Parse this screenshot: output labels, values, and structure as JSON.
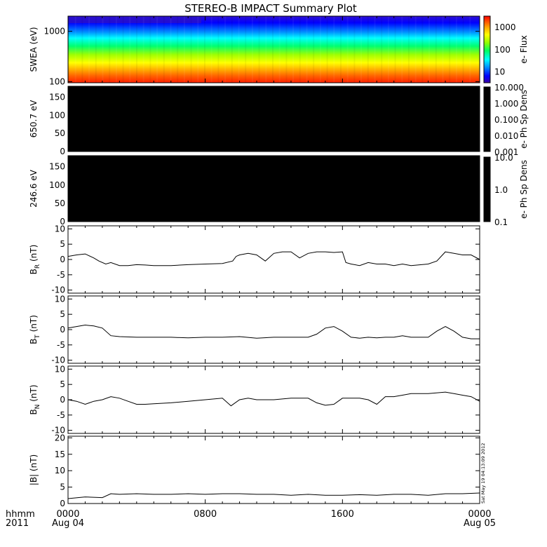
{
  "title": "STEREO-B IMPACT Summary Plot",
  "stamp": "Sat May 19 04:13:09 2012",
  "time_axis": {
    "row1_label": "hhmm",
    "row2_label": "2011",
    "ticks": [
      {
        "t": 0,
        "top": "0000",
        "bottom": "Aug 04"
      },
      {
        "t": 8,
        "top": "0800",
        "bottom": ""
      },
      {
        "t": 16,
        "top": "1600",
        "bottom": ""
      },
      {
        "t": 24,
        "top": "0000",
        "bottom": "Aug 05"
      }
    ],
    "range": [
      0,
      24
    ],
    "minor_step_hours": 1
  },
  "colors": {
    "colorbar": [
      "#3a00a8",
      "#0000ff",
      "#00a0ff",
      "#00ffff",
      "#00ff60",
      "#90ff00",
      "#ffff00",
      "#ffb000",
      "#ff5000",
      "#ff0000"
    ],
    "black_panel": "#000000"
  },
  "chart_data": [
    {
      "type": "heatmap",
      "ylabel": "SWEA (eV)",
      "ylog": true,
      "ylim": [
        95,
        2000
      ],
      "ytick_labels": [
        "100",
        "1000"
      ],
      "colorbar": {
        "label": "e- Flux",
        "log": true,
        "range": [
          3,
          3000
        ],
        "tick_labels": [
          "10",
          "100",
          "1000"
        ]
      },
      "description_bands": [
        {
          "energy_ev": 1800,
          "color": "#1010ff"
        },
        {
          "energy_ev": 1000,
          "color": "#00c0ff"
        },
        {
          "energy_ev": 600,
          "color": "#00ff70"
        },
        {
          "energy_ev": 300,
          "color": "#c0ff00"
        },
        {
          "energy_ev": 150,
          "color": "#ff9000"
        },
        {
          "energy_ev": 100,
          "color": "#ff2000"
        }
      ]
    },
    {
      "type": "heatmap",
      "ylabel": "650.7 eV",
      "ylim": [
        0,
        180
      ],
      "ytick_labels": [
        "0",
        "50",
        "100",
        "150"
      ],
      "colorbar": {
        "label": "e- Ph Sp Dens",
        "log": true,
        "range": [
          0.001,
          10
        ],
        "tick_labels": [
          "0.001",
          "0.010",
          "0.100",
          "1.000",
          "10.000"
        ]
      }
    },
    {
      "type": "heatmap",
      "ylabel": "246.6 eV",
      "ylim": [
        0,
        180
      ],
      "ytick_labels": [
        "0",
        "50",
        "100",
        "150"
      ],
      "colorbar": {
        "label": "e- Ph Sp Dens",
        "log": true,
        "range": [
          0.1,
          10
        ],
        "tick_labels": [
          "0.1",
          "1.0",
          "10.0"
        ]
      }
    },
    {
      "type": "line",
      "ylabel": "B",
      "ylabel_sub": "R",
      "ylabel_unit": " (nT)",
      "ylim": [
        -11,
        11
      ],
      "ytick_labels": [
        "-10",
        "-5",
        "0",
        "5",
        "10"
      ],
      "x": [
        0,
        0.5,
        1,
        1.5,
        1.8,
        2.2,
        2.5,
        3,
        3.5,
        4,
        4.5,
        5,
        6,
        7,
        8,
        9,
        9.6,
        9.8,
        10,
        10.5,
        11,
        11.5,
        12,
        12.5,
        13,
        13.5,
        14,
        14.5,
        15,
        15.5,
        16,
        16.2,
        16.5,
        17,
        17.5,
        18,
        18.5,
        19,
        19.5,
        20,
        21,
        21.5,
        22,
        22.5,
        23,
        23.5,
        24
      ],
      "y": [
        1,
        1.5,
        1.8,
        0.5,
        -0.5,
        -1.5,
        -1,
        -2,
        -2,
        -1.7,
        -1.8,
        -2,
        -2,
        -1.7,
        -1.5,
        -1.3,
        -0.5,
        1,
        1.5,
        2,
        1.5,
        -0.5,
        2,
        2.5,
        2.5,
        0.5,
        2,
        2.5,
        2.5,
        2.3,
        2.5,
        -1,
        -1.5,
        -2,
        -1,
        -1.5,
        -1.5,
        -2,
        -1.5,
        -2,
        -1.5,
        -0.5,
        2.5,
        2,
        1.5,
        1.5,
        0
      ]
    },
    {
      "type": "line",
      "ylabel": "B",
      "ylabel_sub": "T",
      "ylabel_unit": " (nT)",
      "ylim": [
        -11,
        11
      ],
      "ytick_labels": [
        "-10",
        "-5",
        "0",
        "5",
        "10"
      ],
      "x": [
        0,
        0.5,
        1,
        1.5,
        2,
        2.5,
        3,
        4,
        5,
        6,
        7,
        8,
        9,
        10,
        11,
        12,
        13,
        14,
        14.5,
        15,
        15.5,
        16,
        16.5,
        17,
        17.5,
        18,
        18.5,
        19,
        19.5,
        20,
        20.5,
        21,
        21.5,
        22,
        22.5,
        23,
        23.5,
        24
      ],
      "y": [
        0.5,
        1,
        1.5,
        1.2,
        0.5,
        -2,
        -2.3,
        -2.5,
        -2.5,
        -2.5,
        -2.7,
        -2.5,
        -2.5,
        -2.3,
        -2.8,
        -2.5,
        -2.5,
        -2.5,
        -1.5,
        0.5,
        1,
        -0.5,
        -2.5,
        -2.8,
        -2.5,
        -2.7,
        -2.5,
        -2.5,
        -2,
        -2.5,
        -2.5,
        -2.5,
        -0.5,
        1,
        -0.5,
        -2.5,
        -3,
        -3
      ]
    },
    {
      "type": "line",
      "ylabel": "B",
      "ylabel_sub": "N",
      "ylabel_unit": " (nT)",
      "ylim": [
        -11,
        11
      ],
      "ytick_labels": [
        "-10",
        "-5",
        "0",
        "5",
        "10"
      ],
      "x": [
        0,
        0.5,
        1,
        1.5,
        2,
        2.5,
        3,
        3.5,
        4,
        4.5,
        5,
        6,
        7,
        8,
        9,
        9.5,
        10,
        10.5,
        11,
        12,
        13,
        14,
        14.5,
        15,
        15.5,
        16,
        16.5,
        17,
        17.5,
        18,
        18.5,
        19,
        19.5,
        20,
        21,
        22,
        22.5,
        23,
        23.5,
        24
      ],
      "y": [
        0,
        -0.5,
        -1.5,
        -0.5,
        0,
        1,
        0.5,
        -0.5,
        -1.5,
        -1.5,
        -1.3,
        -1,
        -0.5,
        0,
        0.5,
        -2,
        0,
        0.5,
        0,
        0,
        0.5,
        0.5,
        -1,
        -1.8,
        -1.5,
        0.5,
        0.5,
        0.5,
        0,
        -1.5,
        1,
        1,
        1.5,
        2,
        2,
        2.5,
        2,
        1.5,
        1,
        -0.5
      ]
    },
    {
      "type": "line",
      "ylabel": "|B| (nT)",
      "ylim": [
        0,
        20.5
      ],
      "ytick_labels": [
        "0",
        "5",
        "10",
        "15",
        "20"
      ],
      "x": [
        0,
        1,
        2,
        2.5,
        3,
        4,
        5,
        6,
        7,
        8,
        9,
        10,
        11,
        12,
        13,
        14,
        15,
        16,
        17,
        18,
        19,
        20,
        21,
        22,
        23,
        24
      ],
      "y": [
        1.5,
        2,
        1.8,
        3,
        2.8,
        3,
        2.8,
        2.8,
        3,
        2.8,
        3,
        3,
        2.8,
        2.8,
        2.5,
        2.8,
        2.5,
        2.5,
        2.7,
        2.5,
        2.8,
        2.8,
        2.5,
        3,
        3,
        3.2
      ]
    }
  ]
}
